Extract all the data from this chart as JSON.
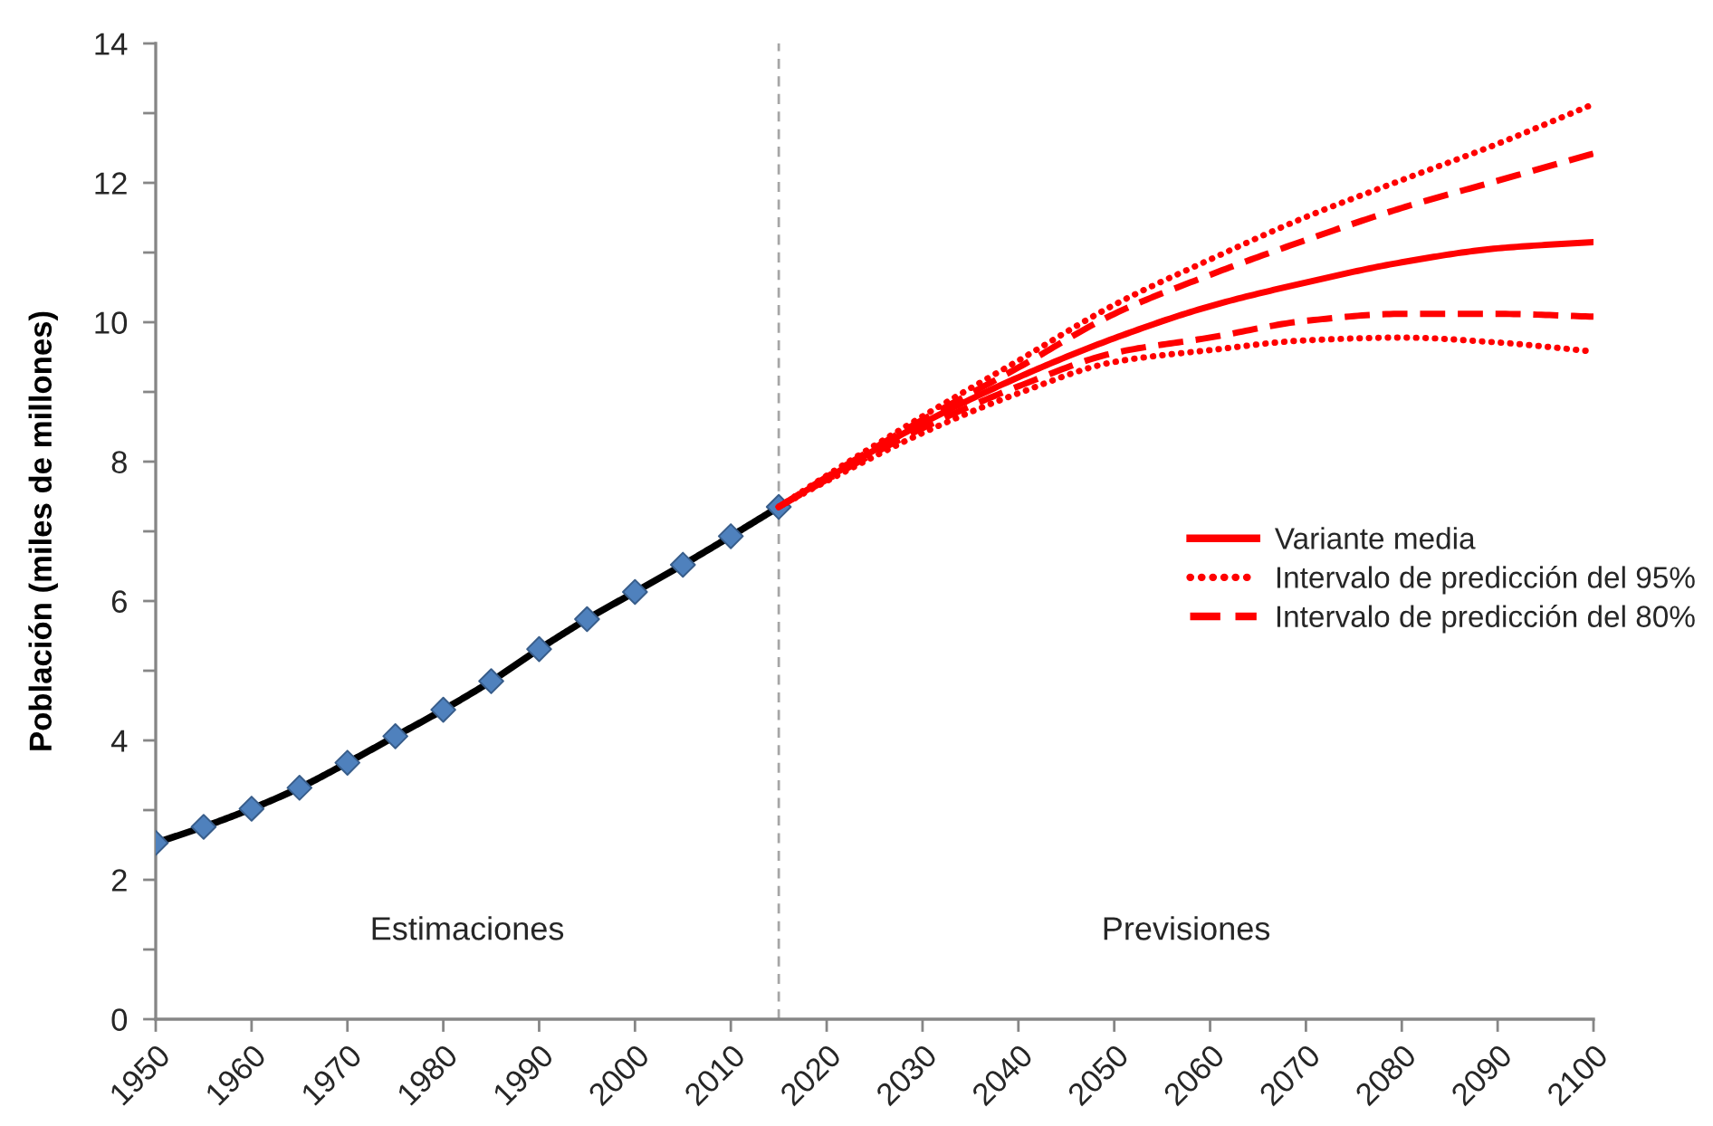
{
  "chart_data": {
    "type": "line",
    "ylabel": "Población (miles de millones)",
    "annotations": [
      "Estimaciones",
      "Previsiones"
    ],
    "xlim": [
      1950,
      2100
    ],
    "xticks": [
      1950,
      1960,
      1970,
      1980,
      1990,
      2000,
      2010,
      2020,
      2030,
      2040,
      2050,
      2060,
      2070,
      2080,
      2090,
      2100
    ],
    "ylim": [
      0,
      14
    ],
    "yticks": [
      0,
      {
        "value": 1,
        "label": null
      },
      2,
      {
        "value": 3,
        "label": null
      },
      4,
      {
        "value": 5,
        "label": null
      },
      6,
      {
        "value": 7,
        "label": null
      },
      8,
      {
        "value": 9,
        "label": null
      },
      10,
      {
        "value": 11,
        "label": null
      },
      12,
      {
        "value": 13,
        "label": null
      },
      14
    ],
    "grid": false,
    "legend": "right",
    "ref_lines": [
      {
        "axis": "x",
        "value": 2015,
        "color": "#a6a6a6",
        "line_style": "dashed"
      }
    ],
    "series": [
      {
        "color": "#000000",
        "colors": [
          "#4f81bd",
          "#4f81bd",
          "#4f81bd",
          "#4f81bd",
          "#4f81bd",
          "#4f81bd",
          "#4f81bd",
          "#4f81bd",
          "#4f81bd",
          "#4f81bd",
          "#4f81bd",
          "#4f81bd",
          "#4f81bd",
          "#4f81bd"
        ],
        "marker": "diamond",
        "line_style": "solid",
        "x": [
          1950,
          1955,
          1960,
          1965,
          1970,
          1975,
          1980,
          1985,
          1990,
          1995,
          2000,
          2005,
          2010,
          2015
        ],
        "values": [
          2.53,
          2.76,
          3.02,
          3.32,
          3.68,
          4.06,
          4.44,
          4.85,
          5.31,
          5.74,
          6.13,
          6.52,
          6.93,
          7.35
        ]
      },
      {
        "name": "Variante media",
        "color": "#ff0000",
        "line_style": "solid",
        "x": [
          2015,
          2020,
          2030,
          2040,
          2050,
          2060,
          2070,
          2080,
          2090,
          2100
        ],
        "values": [
          7.35,
          7.76,
          8.55,
          9.21,
          9.77,
          10.23,
          10.57,
          10.86,
          11.06,
          11.15
        ]
      },
      {
        "name": "Intervalo de predicción del 95%",
        "color": "#ff0000",
        "line_style": "dotted",
        "x": [
          2015,
          2020,
          2030,
          2040,
          2050,
          2060,
          2070,
          2080,
          2090,
          2100
        ],
        "values": [
          7.35,
          7.8,
          8.65,
          9.45,
          10.25,
          10.9,
          11.51,
          12.04,
          12.56,
          13.13
        ]
      },
      {
        "name": "Intervalo de predicción del 80%",
        "color": "#ff0000",
        "line_style": "dashed",
        "x": [
          2015,
          2020,
          2030,
          2040,
          2050,
          2060,
          2070,
          2080,
          2090,
          2100
        ],
        "values": [
          7.35,
          7.78,
          8.6,
          9.35,
          10.12,
          10.68,
          11.18,
          11.64,
          12.03,
          12.42
        ]
      },
      {
        "color": "#ff0000",
        "line_style": "dashed",
        "x": [
          2015,
          2020,
          2030,
          2040,
          2050,
          2060,
          2070,
          2080,
          2090,
          2100
        ],
        "values": [
          7.35,
          7.74,
          8.48,
          9.08,
          9.56,
          9.78,
          10.02,
          10.12,
          10.12,
          10.08
        ]
      },
      {
        "color": "#ff0000",
        "line_style": "dotted",
        "x": [
          2015,
          2020,
          2030,
          2040,
          2050,
          2060,
          2070,
          2080,
          2090,
          2100
        ],
        "values": [
          7.35,
          7.72,
          8.41,
          8.98,
          9.43,
          9.6,
          9.74,
          9.78,
          9.71,
          9.58
        ]
      }
    ]
  }
}
